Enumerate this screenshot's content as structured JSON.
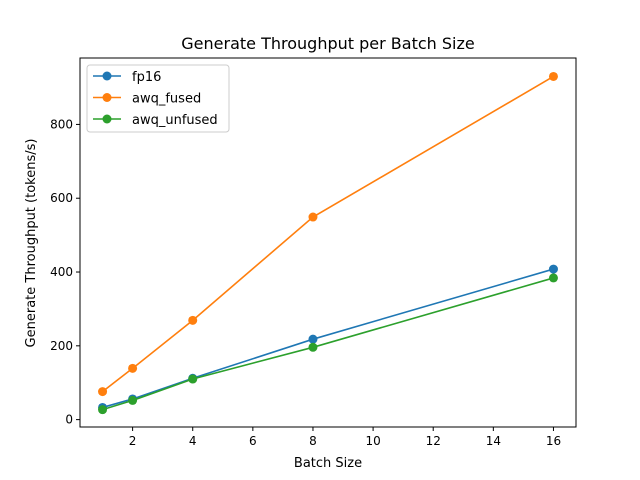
{
  "chart_data": {
    "type": "line",
    "title": "Generate Throughput per Batch Size",
    "xlabel": "Batch Size",
    "ylabel": "Generate Throughput (tokens/s)",
    "x": [
      1,
      2,
      4,
      8,
      16
    ],
    "xlim": [
      0.25,
      16.75
    ],
    "ylim": [
      -20,
      980
    ],
    "xticks": [
      2,
      4,
      6,
      8,
      10,
      12,
      14,
      16
    ],
    "yticks": [
      0,
      200,
      400,
      600,
      800
    ],
    "grid": false,
    "legend": "top-left",
    "series": [
      {
        "name": "fp16",
        "color": "#1f77b4",
        "values": [
          33,
          56,
          112,
          218,
          408
        ]
      },
      {
        "name": "awq_fused",
        "color": "#ff7f0e",
        "values": [
          76,
          139,
          269,
          549,
          930
        ]
      },
      {
        "name": "awq_unfused",
        "color": "#2ca02c",
        "values": [
          27,
          52,
          110,
          196,
          384
        ]
      }
    ]
  }
}
